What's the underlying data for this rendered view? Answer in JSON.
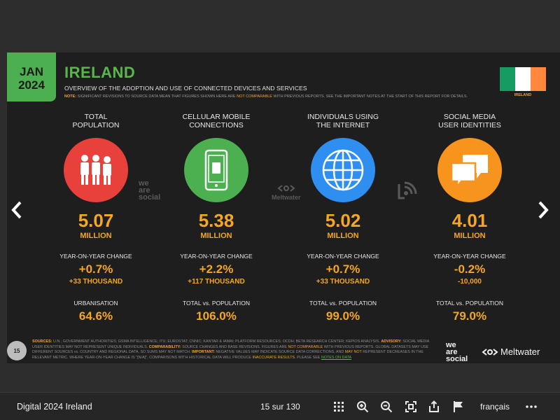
{
  "slide": {
    "date_line1": "JAN",
    "date_line2": "2024",
    "title": "IRELAND",
    "subtitle": "OVERVIEW OF THE ADOPTION AND USE OF CONNECTED DEVICES AND SERVICES",
    "note_label": "NOTE:",
    "note_text_a": "SIGNIFICANT REVISIONS TO SOURCE DATA MEAN THAT FIGURES SHOWN HERE ARE",
    "note_not_comparable": "NOT COMPARABLE",
    "note_text_b": "WITH PREVIOUS REPORTS. SEE THE IMPORTANT NOTES AT THE START OF THIS REPORT FOR DETAILS.",
    "flag_label": "IRELAND",
    "flag_colors": [
      "#169b62",
      "#ffffff",
      "#ff883e"
    ],
    "columns": [
      {
        "title_line1": "TOTAL",
        "title_line2": "POPULATION",
        "icon": "people-icon",
        "color": "#e8413c",
        "value": "5.07",
        "unit": "MILLION",
        "yoy_label": "YEAR-ON-YEAR CHANGE",
        "yoy_pct": "+0.7%",
        "yoy_abs": "+33 THOUSAND",
        "sub_label": "URBANISATION",
        "sub_value": "64.6%"
      },
      {
        "title_line1": "CELLULAR MOBILE",
        "title_line2": "CONNECTIONS",
        "icon": "mobile-phone-icon",
        "color": "#4caf50",
        "value": "5.38",
        "unit": "MILLION",
        "yoy_label": "YEAR-ON-YEAR CHANGE",
        "yoy_pct": "+2.2%",
        "yoy_abs": "+117 THOUSAND",
        "sub_label": "TOTAL vs. POPULATION",
        "sub_value": "106.0%"
      },
      {
        "title_line1": "INDIVIDUALS USING",
        "title_line2": "THE INTERNET",
        "icon": "globe-icon",
        "color": "#2f8ff0",
        "value": "5.02",
        "unit": "MILLION",
        "yoy_label": "YEAR-ON-YEAR CHANGE",
        "yoy_pct": "+0.7%",
        "yoy_abs": "+33 THOUSAND",
        "sub_label": "TOTAL vs. POPULATION",
        "sub_value": "99.0%"
      },
      {
        "title_line1": "SOCIAL MEDIA",
        "title_line2": "USER IDENTITIES",
        "icon": "chat-bubbles-icon",
        "color": "#f7941d",
        "value": "4.01",
        "unit": "MILLION",
        "yoy_label": "YEAR-ON-YEAR CHANGE",
        "yoy_pct": "-0.2%",
        "yoy_abs": "-10,000",
        "sub_label": "TOTAL vs. POPULATION",
        "sub_value": "79.0%"
      }
    ],
    "watermark_ws_1": "we",
    "watermark_ws_2": "are",
    "watermark_ws_3": "social",
    "watermark_mw": "Meltwater",
    "sources": {
      "k_sources": "SOURCES:",
      "t_sources": "U.N.; GOVERNMENT AUTHORITIES; GSMA INTELLIGENCE; ITU; EUROSTAT; CNNIC; KANTAR & IAMAI; PLATFORM RESOURCES; OCDH; BETA RESEARCH CENTER; KEPIOS ANALYSIS.",
      "k_advisory": "ADVISORY:",
      "t_advisory": "SOCIAL MEDIA USER IDENTITIES MAY NOT REPRESENT UNIQUE INDIVIDUALS.",
      "k_comparability": "COMPARABILITY:",
      "t_comparability_a": "SOURCE CHANGES AND BASE REVISIONS. FIGURES ARE",
      "nc1": "NOT COMPARABLE",
      "t_comparability_b": "WITH PREVIOUS REPORTS. GLOBAL DATASETS MAY USE DIFFERENT SOURCES vs. COUNTRY AND REGIONAL DATA, SO SUMS MAY NOT MATCH.",
      "k_important": "IMPORTANT:",
      "t_important_a": "NEGATIVE VALUES MAY INDICATE SOURCE DATA CORRECTIONS, AND",
      "nc2": "MAY NOT",
      "t_important_b": "REPRESENT DECREASES IN THE RELEVANT METRIC. WHERE YEAR-ON-YEAR CHANGE IS \"[N/A]\", COMPARISONS WITH HISTORICAL DATA WILL PRODUCE",
      "nc3": "INACCURATE RESULTS.",
      "t_important_c": "PLEASE SEE",
      "link": "NOTES ON DATA"
    },
    "page_number": "15",
    "footer_ws_1": "we",
    "footer_ws_2": "are",
    "footer_ws_3": "social",
    "footer_mw": "Meltwater"
  },
  "viewer": {
    "doc_title": "Digital 2024 Ireland",
    "page_counter": "15 sur 130",
    "language": "français",
    "tools": [
      "grid-icon",
      "zoom-in-icon",
      "zoom-out-icon",
      "fullscreen-icon",
      "share-icon",
      "flag-icon",
      "more-icon"
    ]
  }
}
